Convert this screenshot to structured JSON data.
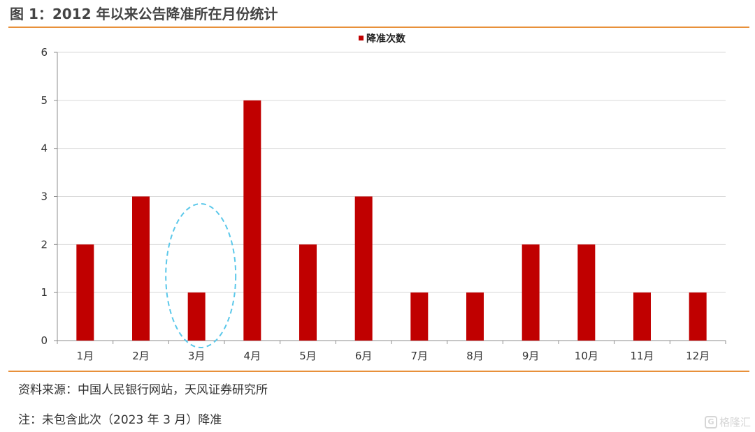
{
  "header": {
    "title": "图 1：2012 年以来公告降准所在月份统计"
  },
  "chart_data": {
    "type": "bar",
    "title": "",
    "xlabel": "",
    "ylabel": "",
    "categories": [
      "1月",
      "2月",
      "3月",
      "4月",
      "5月",
      "6月",
      "7月",
      "8月",
      "9月",
      "10月",
      "11月",
      "12月"
    ],
    "series": [
      {
        "name": "降准次数",
        "values": [
          2,
          3,
          1,
          5,
          2,
          3,
          1,
          1,
          2,
          2,
          1,
          1
        ],
        "color": "#C00000"
      }
    ],
    "yticks": [
      "0",
      "1",
      "2",
      "3",
      "4",
      "5",
      "6"
    ],
    "ylim": [
      0,
      6
    ],
    "grid": true,
    "legend": "top-center",
    "highlight": {
      "category": "3月",
      "shape": "dashed-ellipse",
      "color": "#5BC8EA"
    }
  },
  "footer": {
    "source": "资料来源：中国人民银行网站，天风证券研究所",
    "note": "注：未包含此次（2023 年 3 月）降准",
    "watermark_icon": "G",
    "watermark": "格隆汇"
  }
}
